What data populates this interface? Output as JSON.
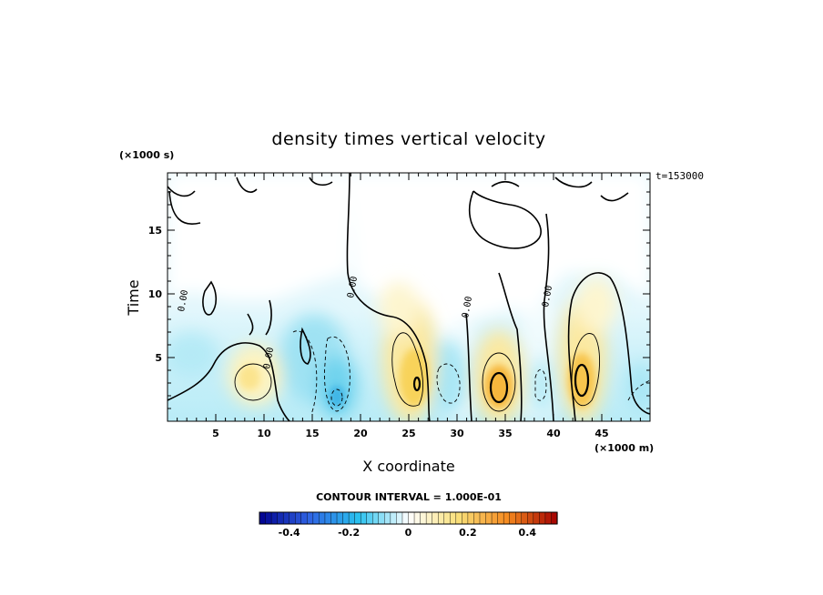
{
  "chart_data": {
    "type": "heatmap",
    "title": "density times vertical velocity",
    "xlabel": "X coordinate",
    "ylabel": "Time",
    "x_units": "(×1000 m)",
    "y_units": "(×1000 s)",
    "time_stamp": "t=153000",
    "xlim": [
      0,
      50
    ],
    "ylim": [
      0,
      19.5
    ],
    "x_ticks": [
      "5",
      "10",
      "15",
      "20",
      "25",
      "30",
      "35",
      "40",
      "45"
    ],
    "y_ticks": [
      "5",
      "10",
      "15"
    ],
    "contour_interval": "CONTOUR INTERVAL = 1.000E-01",
    "contour_labels": [
      "0.00",
      "0.00",
      "0.00",
      "0.00",
      "0.00"
    ],
    "colorbar": {
      "range": [
        -0.5,
        0.5
      ],
      "tick_labels": [
        "-0.4",
        "-0.2",
        "0",
        "0.2",
        "0.4"
      ],
      "colors": [
        "#00008f",
        "#2f63e3",
        "#29c2ef",
        "#ffffff",
        "#f9e07a",
        "#f58a1f",
        "#a30000"
      ]
    },
    "features": [
      {
        "x": 8.5,
        "t": 3.0,
        "value": 0.12
      },
      {
        "x": 13.5,
        "t": 4.0,
        "value": -0.12
      },
      {
        "x": 17.0,
        "t": 2.0,
        "value": -0.25
      },
      {
        "x": 25.5,
        "t": 3.5,
        "value": 0.25
      },
      {
        "x": 30.0,
        "t": 3.0,
        "value": -0.15
      },
      {
        "x": 34.5,
        "t": 2.5,
        "value": 0.3
      },
      {
        "x": 38.5,
        "t": 3.0,
        "value": -0.08
      },
      {
        "x": 42.5,
        "t": 3.0,
        "value": 0.25
      },
      {
        "x": 48.5,
        "t": 2.5,
        "value": -0.08
      }
    ]
  }
}
